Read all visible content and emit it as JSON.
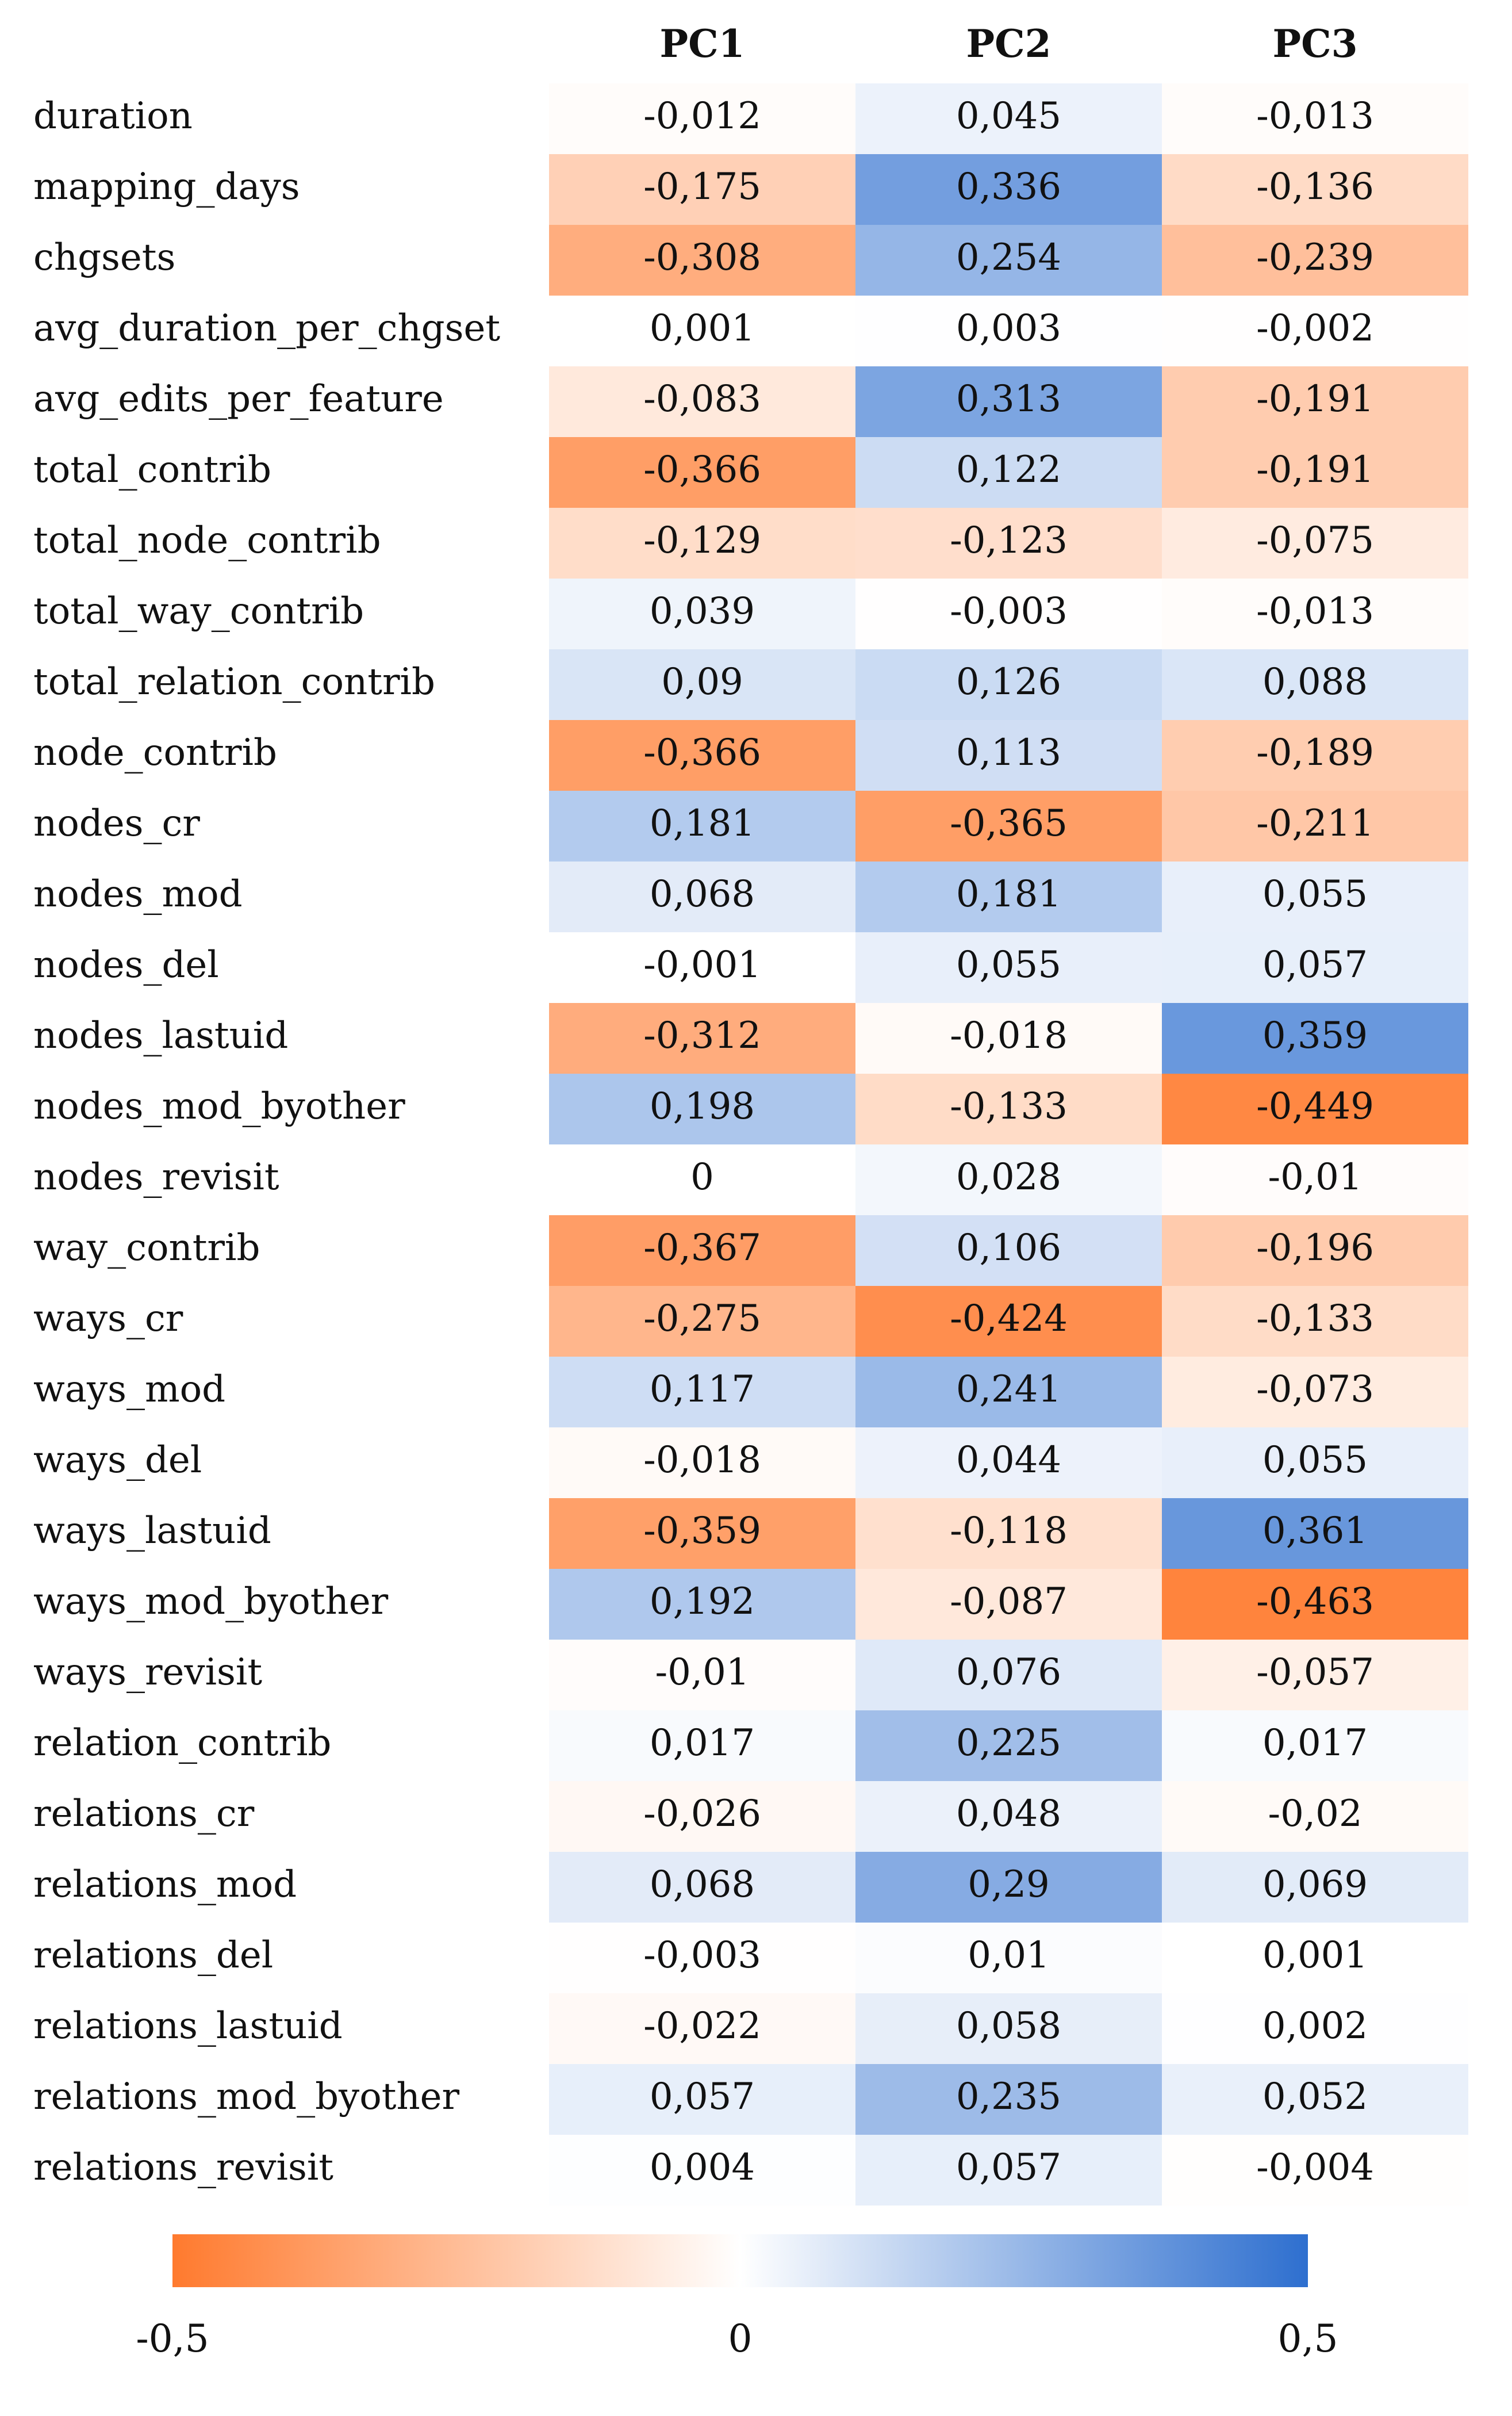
{
  "chart_data": {
    "type": "heatmap",
    "title": "",
    "columns": [
      "PC1",
      "PC2",
      "PC3"
    ],
    "rows": [
      {
        "label": "duration",
        "values": [
          "-0,012",
          "0,045",
          "-0,013"
        ]
      },
      {
        "label": "mapping_days",
        "values": [
          "-0,175",
          "0,336",
          "-0,136"
        ]
      },
      {
        "label": "chgsets",
        "values": [
          "-0,308",
          "0,254",
          "-0,239"
        ]
      },
      {
        "label": "avg_duration_per_chgset",
        "values": [
          "0,001",
          "0,003",
          "-0,002"
        ]
      },
      {
        "label": "avg_edits_per_feature",
        "values": [
          "-0,083",
          "0,313",
          "-0,191"
        ]
      },
      {
        "label": "total_contrib",
        "values": [
          "-0,366",
          "0,122",
          "-0,191"
        ]
      },
      {
        "label": "total_node_contrib",
        "values": [
          "-0,129",
          "-0,123",
          "-0,075"
        ]
      },
      {
        "label": "total_way_contrib",
        "values": [
          "0,039",
          "-0,003",
          "-0,013"
        ]
      },
      {
        "label": "total_relation_contrib",
        "values": [
          "0,09",
          "0,126",
          "0,088"
        ]
      },
      {
        "label": "node_contrib",
        "values": [
          "-0,366",
          "0,113",
          "-0,189"
        ]
      },
      {
        "label": "nodes_cr",
        "values": [
          "0,181",
          "-0,365",
          "-0,211"
        ]
      },
      {
        "label": "nodes_mod",
        "values": [
          "0,068",
          "0,181",
          "0,055"
        ]
      },
      {
        "label": "nodes_del",
        "values": [
          "-0,001",
          "0,055",
          "0,057"
        ]
      },
      {
        "label": "nodes_lastuid",
        "values": [
          "-0,312",
          "-0,018",
          "0,359"
        ]
      },
      {
        "label": "nodes_mod_byother",
        "values": [
          "0,198",
          "-0,133",
          "-0,449"
        ]
      },
      {
        "label": "nodes_revisit",
        "values": [
          "0",
          "0,028",
          "-0,01"
        ]
      },
      {
        "label": "way_contrib",
        "values": [
          "-0,367",
          "0,106",
          "-0,196"
        ]
      },
      {
        "label": "ways_cr",
        "values": [
          "-0,275",
          "-0,424",
          "-0,133"
        ]
      },
      {
        "label": "ways_mod",
        "values": [
          "0,117",
          "0,241",
          "-0,073"
        ]
      },
      {
        "label": "ways_del",
        "values": [
          "-0,018",
          "0,044",
          "0,055"
        ]
      },
      {
        "label": "ways_lastuid",
        "values": [
          "-0,359",
          "-0,118",
          "0,361"
        ]
      },
      {
        "label": "ways_mod_byother",
        "values": [
          "0,192",
          "-0,087",
          "-0,463"
        ]
      },
      {
        "label": "ways_revisit",
        "values": [
          "-0,01",
          "0,076",
          "-0,057"
        ]
      },
      {
        "label": "relation_contrib",
        "values": [
          "0,017",
          "0,225",
          "0,017"
        ]
      },
      {
        "label": "relations_cr",
        "values": [
          "-0,026",
          "0,048",
          "-0,02"
        ]
      },
      {
        "label": "relations_mod",
        "values": [
          "0,068",
          "0,29",
          "0,069"
        ]
      },
      {
        "label": "relations_del",
        "values": [
          "-0,003",
          "0,01",
          "0,001"
        ]
      },
      {
        "label": "relations_lastuid",
        "values": [
          "-0,022",
          "0,058",
          "0,002"
        ]
      },
      {
        "label": "relations_mod_byother",
        "values": [
          "0,057",
          "0,235",
          "0,052"
        ]
      },
      {
        "label": "relations_revisit",
        "values": [
          "0,004",
          "0,057",
          "-0,004"
        ]
      }
    ],
    "color_scale": {
      "min": -0.5,
      "max": 0.5,
      "min_color": "#FF7A2E",
      "mid_color": "#FFFFFF",
      "max_color": "#2E6FCF",
      "tick_labels": [
        "-0,5",
        "0",
        "0,5"
      ]
    }
  }
}
